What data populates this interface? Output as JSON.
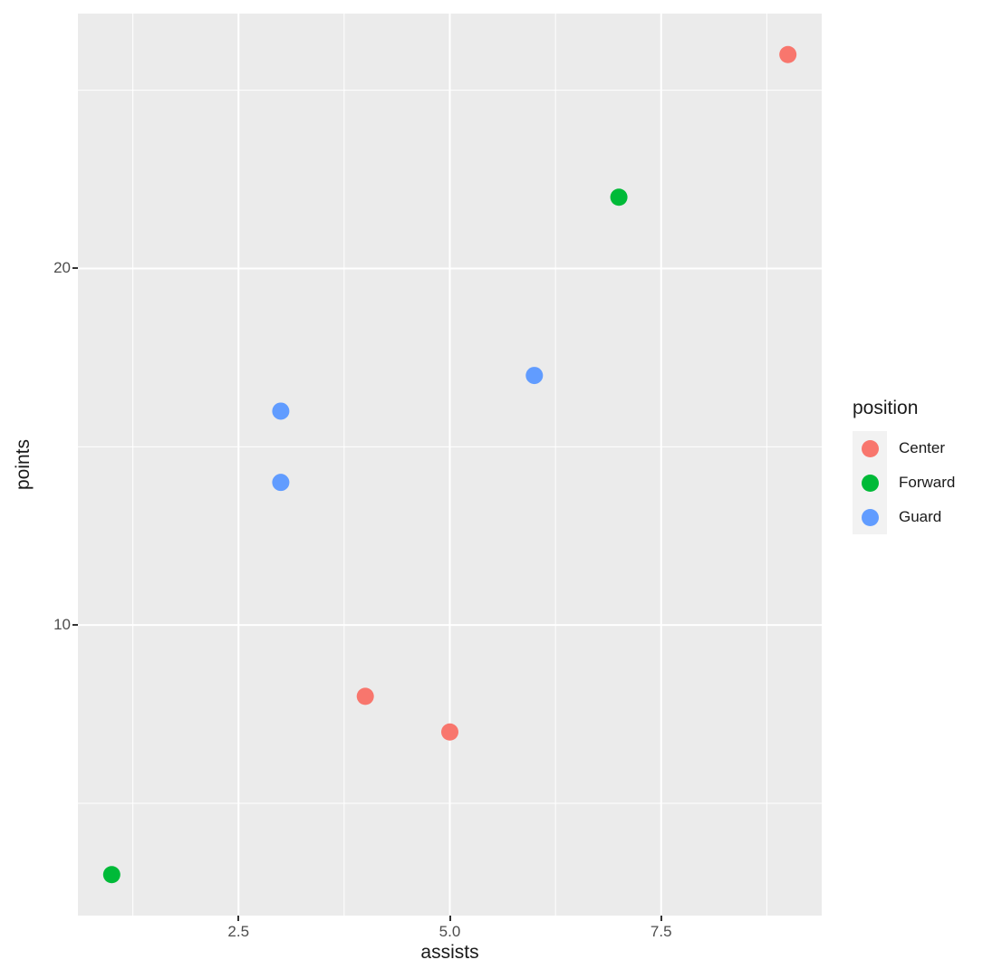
{
  "chart_data": {
    "type": "scatter",
    "title": "",
    "xlabel": "assists",
    "ylabel": "points",
    "xlim": [
      0.6,
      9.4
    ],
    "ylim": [
      1.85,
      27.15
    ],
    "x_major_ticks": [
      2.5,
      5.0,
      7.5
    ],
    "x_tick_labels": [
      "2.5",
      "5.0",
      "7.5"
    ],
    "x_minor_ticks": [
      1.25,
      3.75,
      6.25,
      8.75
    ],
    "y_major_ticks": [
      10,
      20
    ],
    "y_tick_labels": [
      "10",
      "20"
    ],
    "y_minor_ticks": [
      5,
      15,
      25
    ],
    "grid": "major+minor",
    "legend_position": "right",
    "legend_title": "position",
    "series": [
      {
        "name": "Center",
        "color": "#F8766D",
        "points": [
          {
            "x": 9,
            "y": 26
          },
          {
            "x": 4,
            "y": 8
          },
          {
            "x": 5,
            "y": 7
          }
        ]
      },
      {
        "name": "Forward",
        "color": "#00BA38",
        "points": [
          {
            "x": 7,
            "y": 22
          },
          {
            "x": 1,
            "y": 3
          }
        ]
      },
      {
        "name": "Guard",
        "color": "#619CFF",
        "points": [
          {
            "x": 6,
            "y": 17
          },
          {
            "x": 3,
            "y": 16
          },
          {
            "x": 3,
            "y": 14
          }
        ]
      }
    ],
    "styles": {
      "panel_bg": "#EBEBEB",
      "grid_color": "#FFFFFF",
      "tick_mark_color": "#333333",
      "tick_label_color": "#4D4D4D",
      "axis_title_color": "#1A1A1A",
      "legend_key_bg": "#F2F2F2",
      "point_radius": 9.5
    }
  }
}
